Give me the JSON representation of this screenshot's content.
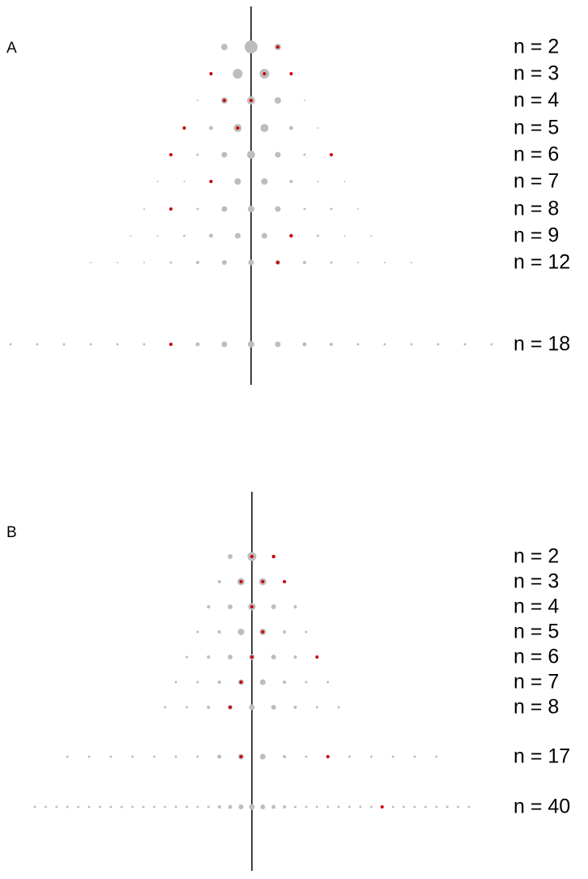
{
  "chart_data": [
    {
      "type": "dot",
      "panel_label": "A",
      "dot_color": "#bdbdbd",
      "mark_color": "#cc0000",
      "rows": [
        {
          "label": "n = 2",
          "positions": [
            -1,
            0,
            1
          ],
          "sizes": [
            4,
            8,
            4
          ],
          "red": [
            1
          ]
        },
        {
          "label": "n = 3",
          "positions": [
            -1.5,
            -0.5,
            0.5,
            1.5
          ],
          "sizes": [
            1,
            6,
            6,
            1
          ],
          "red": [
            -1.5,
            0.5,
            1.5
          ]
        },
        {
          "label": "n = 4",
          "positions": [
            -2,
            -1,
            0,
            1,
            2
          ],
          "sizes": [
            1,
            4,
            5,
            4,
            1
          ],
          "red": [
            -1,
            0
          ]
        },
        {
          "label": "n = 5",
          "positions": [
            -2.5,
            -1.5,
            -0.5,
            0.5,
            1.5,
            2.5
          ],
          "sizes": [
            1,
            2.5,
            5,
            5,
            2.5,
            1
          ],
          "red": [
            -2.5,
            -0.5
          ]
        },
        {
          "label": "n = 6",
          "positions": [
            -3,
            -2,
            -1,
            0,
            1,
            2,
            3
          ],
          "sizes": [
            1,
            1.5,
            3.5,
            5,
            3.5,
            1.5,
            1
          ],
          "red": [
            -3,
            3
          ]
        },
        {
          "label": "n = 7",
          "positions": [
            -3.5,
            -2.5,
            -1.5,
            -0.5,
            0.5,
            1.5,
            2.5,
            3.5
          ],
          "sizes": [
            1,
            1,
            2,
            4,
            4,
            2,
            1,
            1
          ],
          "red": [
            -1.5
          ]
        },
        {
          "label": "n = 8",
          "positions": [
            -4,
            -3,
            -2,
            -1,
            0,
            1,
            2,
            3,
            4
          ],
          "sizes": [
            1,
            1.5,
            1.5,
            3.5,
            4,
            3.5,
            1.5,
            1.5,
            1
          ],
          "red": [
            -3
          ]
        },
        {
          "label": "n = 9",
          "positions": [
            -4.5,
            -3.5,
            -2.5,
            -1.5,
            -0.5,
            0.5,
            1.5,
            2.5,
            3.5,
            4.5
          ],
          "sizes": [
            1,
            1,
            1.5,
            2.5,
            3.5,
            3.5,
            2.5,
            1.5,
            1,
            1
          ],
          "red": [
            1.5
          ]
        },
        {
          "label": "n = 12",
          "positions": [
            -6,
            -5,
            -4,
            -3,
            -2,
            -1,
            0,
            1,
            2,
            3,
            4,
            5,
            6
          ],
          "sizes": [
            1,
            1,
            1,
            1.5,
            2,
            3,
            3.5,
            3,
            2,
            1.5,
            1,
            1,
            1
          ],
          "red": [
            1
          ]
        },
        {
          "label": "n = 18",
          "positions": [
            -9,
            -8,
            -7,
            -6,
            -5,
            -4,
            -3,
            -2,
            -1,
            0,
            1,
            2,
            3,
            4,
            5,
            6,
            7,
            8,
            9
          ],
          "sizes": [
            1.5,
            1.5,
            1.5,
            1.5,
            1.5,
            1.5,
            2,
            2.5,
            3.5,
            4,
            3.5,
            2.5,
            2,
            1.5,
            1.5,
            1.5,
            1.5,
            1.5,
            1.5
          ],
          "red": [
            -3
          ]
        }
      ]
    },
    {
      "type": "dot",
      "panel_label": "B",
      "dot_color": "#bdbdbd",
      "mark_color": "#cc0000",
      "rows": [
        {
          "label": "n = 2",
          "positions": [
            -2,
            0,
            2
          ],
          "sizes": [
            3,
            5.5,
            2.5
          ],
          "red": [
            0,
            2
          ]
        },
        {
          "label": "n = 3",
          "positions": [
            -3,
            -1,
            1,
            3
          ],
          "sizes": [
            2,
            4.5,
            4.5,
            1.5
          ],
          "red": [
            -1,
            1,
            3
          ]
        },
        {
          "label": "n = 4",
          "positions": [
            -4,
            -2,
            0,
            2,
            4
          ],
          "sizes": [
            2,
            3,
            4.5,
            3,
            2
          ],
          "red": [
            0
          ]
        },
        {
          "label": "n = 5",
          "positions": [
            -5,
            -3,
            -1,
            1,
            3,
            5
          ],
          "sizes": [
            1.5,
            2,
            4,
            4,
            2,
            1.5
          ],
          "red": [
            1
          ]
        },
        {
          "label": "n = 6",
          "positions": [
            -6,
            -4,
            -2,
            0,
            2,
            4,
            6
          ],
          "sizes": [
            1.5,
            2,
            3,
            3.5,
            3,
            2,
            1.5
          ],
          "red": [
            0,
            6
          ]
        },
        {
          "label": "n = 7",
          "positions": [
            -7,
            -5,
            -3,
            -1,
            1,
            3,
            5,
            7
          ],
          "sizes": [
            1.5,
            1.5,
            2,
            3.5,
            3.5,
            2,
            1.5,
            1.5
          ],
          "red": [
            -1
          ]
        },
        {
          "label": "n = 8",
          "positions": [
            -8,
            -6,
            -4,
            -2,
            0,
            2,
            4,
            6,
            8
          ],
          "sizes": [
            1.5,
            1.5,
            2,
            3,
            3.5,
            3,
            2,
            1.5,
            1.5
          ],
          "red": [
            -2
          ]
        },
        {
          "label": "n = 17",
          "positions": [
            -17,
            -15,
            -13,
            -11,
            -9,
            -7,
            -5,
            -3,
            -1,
            1,
            3,
            5,
            7,
            9,
            11,
            13,
            15,
            17
          ],
          "sizes": [
            1.5,
            1.5,
            1.5,
            1.5,
            1.5,
            1.5,
            1.5,
            2.5,
            3.5,
            3.5,
            2,
            1.5,
            1.5,
            1.5,
            1.5,
            1.5,
            1.5,
            1.5
          ],
          "red": [
            -1,
            7
          ]
        },
        {
          "label": "n = 40",
          "positions": [
            -20,
            -19,
            -18,
            -17,
            -16,
            -15,
            -14,
            -13,
            -12,
            -11,
            -10,
            -9,
            -8,
            -7,
            -6,
            -5,
            -4,
            -3,
            -2,
            -1,
            0,
            1,
            2,
            3,
            4,
            5,
            6,
            7,
            8,
            9,
            10,
            11,
            12,
            13,
            14,
            15,
            16,
            17,
            18,
            19,
            20
          ],
          "sizes": [
            1.5,
            1.5,
            1.5,
            1.5,
            1.5,
            1.5,
            1.5,
            1.5,
            1.5,
            1.5,
            1.5,
            1.5,
            1.5,
            1.5,
            1.5,
            1.5,
            1.5,
            2,
            2.5,
            3,
            3.5,
            3,
            2.5,
            2,
            1.5,
            1.5,
            1.5,
            1.5,
            1.5,
            1.5,
            1.5,
            1.5,
            1.5,
            1.5,
            1.5,
            1.5,
            1.5,
            1.5,
            1.5,
            1.5,
            1.5
          ],
          "red": [
            12
          ]
        }
      ]
    }
  ]
}
